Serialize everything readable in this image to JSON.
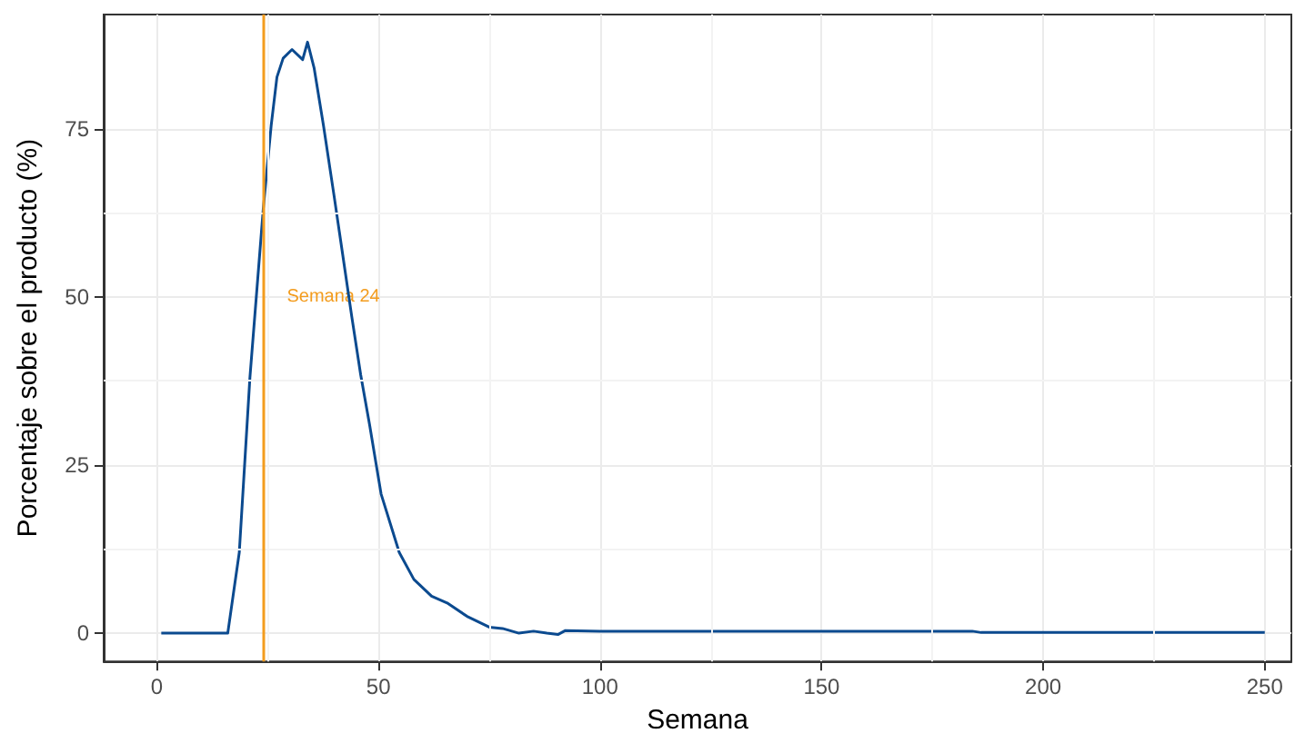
{
  "chart_data": {
    "type": "line",
    "xlabel": "Semana",
    "ylabel": "Porcentaje sobre el producto (%)",
    "x": [
      1,
      10,
      16,
      18.6,
      21,
      24,
      25.8,
      27.1,
      28.5,
      30.5,
      32.9,
      34,
      35.5,
      37.6,
      40,
      42,
      44,
      46,
      48,
      50.6,
      54.7,
      58,
      62,
      65.5,
      70,
      75,
      78,
      81.7,
      85,
      88,
      90.5,
      92.2,
      100,
      120,
      150,
      184,
      186,
      220,
      250
    ],
    "series": [
      {
        "color": "#0b4a8f",
        "values": [
          0,
          0,
          0,
          12,
          38,
          63,
          75.5,
          82.7,
          85.5,
          86.8,
          85.3,
          87.9,
          84,
          75.5,
          65,
          56,
          47,
          38.4,
          31,
          20.7,
          12,
          8,
          5.5,
          4.5,
          2.5,
          0.9,
          0.7,
          0,
          0.3,
          0,
          -0.2,
          0.4,
          0.3,
          0.3,
          0.3,
          0.3,
          0.1,
          0.1,
          0.1
        ]
      }
    ],
    "xlim": [
      -12,
      256
    ],
    "xticks": [
      0,
      50,
      100,
      150,
      200,
      250
    ],
    "ylim": [
      -4.2,
      92
    ],
    "yticks": [
      0,
      25,
      50,
      75
    ],
    "grid": true,
    "marker": "none",
    "line_style": "solid",
    "ref_lines": [
      {
        "axis": "x",
        "value": 24,
        "label": "Semana 24",
        "color": "#f39c1e"
      }
    ]
  }
}
